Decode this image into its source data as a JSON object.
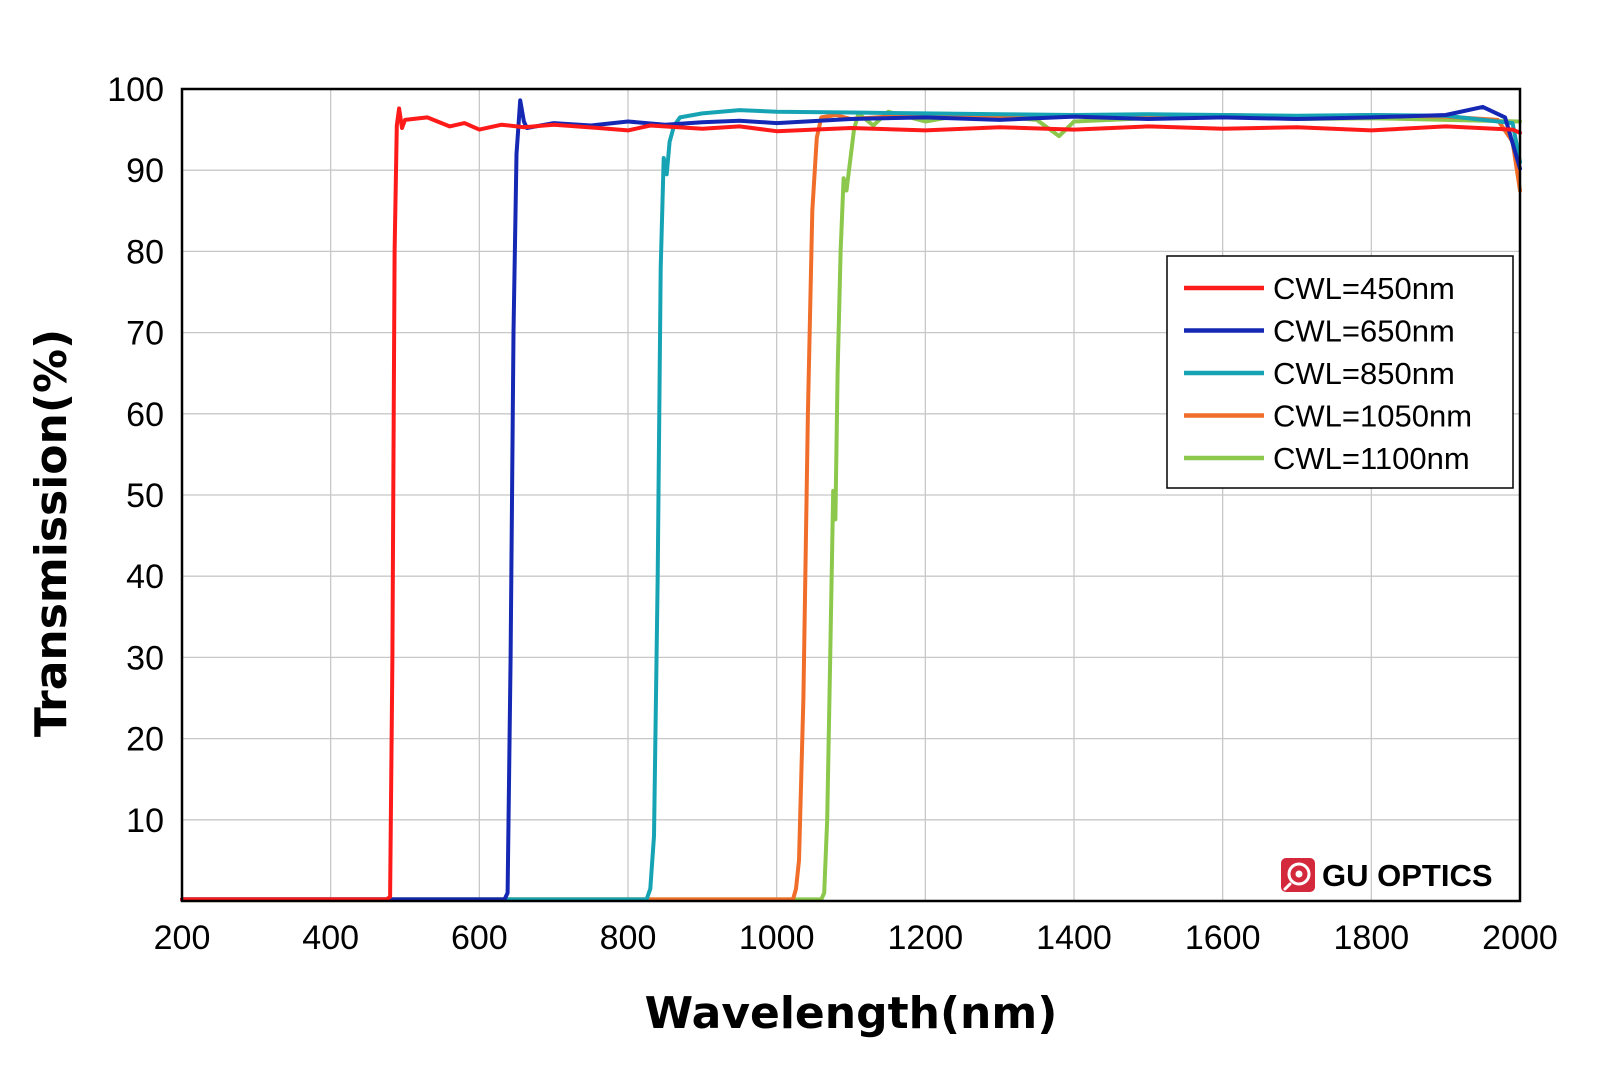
{
  "chart_data": {
    "type": "line",
    "xlabel": "Wavelength(nm)",
    "ylabel": "Transmission(%)",
    "xlim": [
      200,
      2000
    ],
    "ylim": [
      0,
      100
    ],
    "x_ticks": [
      "200",
      "400",
      "600",
      "800",
      "1000",
      "1200",
      "1400",
      "1600",
      "1800",
      "2000"
    ],
    "y_ticks": [
      "10",
      "20",
      "30",
      "40",
      "50",
      "60",
      "70",
      "80",
      "90",
      "100"
    ],
    "grid": true,
    "legend_position": "top-right",
    "series": [
      {
        "name": "CWL=450nm",
        "color": "#ff1a1a",
        "points": [
          [
            200,
            0.2
          ],
          [
            475,
            0.2
          ],
          [
            480,
            0.5
          ],
          [
            483,
            30
          ],
          [
            486,
            80
          ],
          [
            489,
            95.5
          ],
          [
            492,
            97.6
          ],
          [
            496,
            95.2
          ],
          [
            500,
            96.2
          ],
          [
            530,
            96.5
          ],
          [
            560,
            95.4
          ],
          [
            580,
            95.8
          ],
          [
            600,
            95.0
          ],
          [
            630,
            95.6
          ],
          [
            660,
            95.3
          ],
          [
            700,
            95.6
          ],
          [
            760,
            95.2
          ],
          [
            800,
            94.9
          ],
          [
            830,
            95.5
          ],
          [
            900,
            95.1
          ],
          [
            950,
            95.4
          ],
          [
            1000,
            94.8
          ],
          [
            1100,
            95.2
          ],
          [
            1200,
            94.9
          ],
          [
            1300,
            95.3
          ],
          [
            1400,
            95.0
          ],
          [
            1500,
            95.4
          ],
          [
            1600,
            95.1
          ],
          [
            1700,
            95.3
          ],
          [
            1800,
            94.9
          ],
          [
            1900,
            95.4
          ],
          [
            1990,
            95.0
          ],
          [
            2000,
            94.6
          ]
        ]
      },
      {
        "name": "CWL=650nm",
        "color": "#1428b4",
        "points": [
          [
            200,
            0.2
          ],
          [
            634,
            0.2
          ],
          [
            638,
            1
          ],
          [
            642,
            30
          ],
          [
            646,
            70
          ],
          [
            650,
            92
          ],
          [
            655,
            98.6
          ],
          [
            660,
            96.0
          ],
          [
            664,
            95.2
          ],
          [
            700,
            95.8
          ],
          [
            750,
            95.5
          ],
          [
            800,
            96.0
          ],
          [
            850,
            95.6
          ],
          [
            900,
            95.9
          ],
          [
            950,
            96.1
          ],
          [
            1000,
            95.8
          ],
          [
            1100,
            96.3
          ],
          [
            1200,
            96.5
          ],
          [
            1300,
            96.2
          ],
          [
            1400,
            96.6
          ],
          [
            1500,
            96.3
          ],
          [
            1600,
            96.5
          ],
          [
            1700,
            96.3
          ],
          [
            1800,
            96.5
          ],
          [
            1900,
            96.8
          ],
          [
            1950,
            97.8
          ],
          [
            1980,
            96.5
          ],
          [
            2000,
            90.2
          ]
        ]
      },
      {
        "name": "CWL=850nm",
        "color": "#16a3b4",
        "points": [
          [
            200,
            0.2
          ],
          [
            825,
            0.2
          ],
          [
            830,
            1.5
          ],
          [
            835,
            8
          ],
          [
            840,
            40
          ],
          [
            844,
            78
          ],
          [
            848,
            91.5
          ],
          [
            852,
            89.5
          ],
          [
            856,
            93.5
          ],
          [
            862,
            95.5
          ],
          [
            870,
            96.5
          ],
          [
            900,
            97.0
          ],
          [
            950,
            97.4
          ],
          [
            1000,
            97.2
          ],
          [
            1100,
            97.1
          ],
          [
            1200,
            97.0
          ],
          [
            1300,
            96.9
          ],
          [
            1400,
            96.8
          ],
          [
            1500,
            96.9
          ],
          [
            1600,
            96.8
          ],
          [
            1700,
            96.7
          ],
          [
            1800,
            96.8
          ],
          [
            1900,
            96.7
          ],
          [
            1990,
            95.8
          ],
          [
            2000,
            91.0
          ]
        ]
      },
      {
        "name": "CWL=1050nm",
        "color": "#f06e2a",
        "points": [
          [
            200,
            0.2
          ],
          [
            1022,
            0.2
          ],
          [
            1026,
            1.5
          ],
          [
            1030,
            5
          ],
          [
            1036,
            25
          ],
          [
            1042,
            60
          ],
          [
            1048,
            85
          ],
          [
            1054,
            94
          ],
          [
            1060,
            96.5
          ],
          [
            1080,
            96.8
          ],
          [
            1100,
            96.3
          ],
          [
            1150,
            96.6
          ],
          [
            1200,
            96.8
          ],
          [
            1300,
            96.6
          ],
          [
            1400,
            96.8
          ],
          [
            1500,
            96.6
          ],
          [
            1600,
            96.8
          ],
          [
            1700,
            96.6
          ],
          [
            1800,
            96.8
          ],
          [
            1900,
            96.6
          ],
          [
            1970,
            96.2
          ],
          [
            1990,
            93.5
          ],
          [
            2000,
            87.5
          ]
        ]
      },
      {
        "name": "CWL=1100nm",
        "color": "#8cc84b",
        "points": [
          [
            200,
            0.2
          ],
          [
            1060,
            0.2
          ],
          [
            1064,
            1
          ],
          [
            1068,
            10
          ],
          [
            1072,
            30
          ],
          [
            1076,
            50.5
          ],
          [
            1079,
            47
          ],
          [
            1082,
            65
          ],
          [
            1086,
            80
          ],
          [
            1090,
            89
          ],
          [
            1094,
            87.5
          ],
          [
            1098,
            90.5
          ],
          [
            1104,
            95
          ],
          [
            1110,
            97
          ],
          [
            1130,
            95.5
          ],
          [
            1150,
            97.2
          ],
          [
            1200,
            96.0
          ],
          [
            1250,
            96.8
          ],
          [
            1300,
            96.6
          ],
          [
            1350,
            96.2
          ],
          [
            1380,
            94.2
          ],
          [
            1400,
            96.0
          ],
          [
            1500,
            96.4
          ],
          [
            1600,
            96.6
          ],
          [
            1700,
            96.3
          ],
          [
            1800,
            96.4
          ],
          [
            1900,
            96.2
          ],
          [
            2000,
            96.0
          ]
        ]
      }
    ]
  },
  "brand": {
    "name": "GU OPTICS",
    "logo_icon": "gu-optics-logo-icon",
    "logo_color": "#d4283c"
  }
}
